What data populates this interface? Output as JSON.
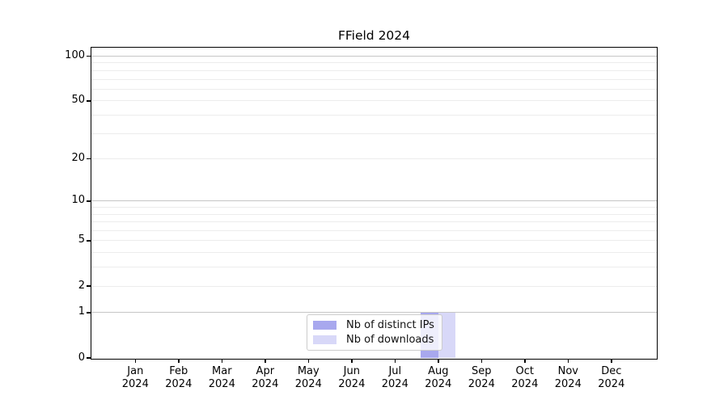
{
  "chart_data": {
    "type": "bar",
    "title": "FField 2024",
    "categories": [
      "Jan 2024",
      "Feb 2024",
      "Mar 2024",
      "Apr 2024",
      "May 2024",
      "Jun 2024",
      "Jul 2024",
      "Aug 2024",
      "Sep 2024",
      "Oct 2024",
      "Nov 2024",
      "Dec 2024"
    ],
    "series": [
      {
        "name": "Nb of distinct IPs",
        "color": "#a8a8ee",
        "values": [
          0,
          0,
          0,
          0,
          0,
          0,
          0,
          1,
          0,
          0,
          0,
          0
        ]
      },
      {
        "name": "Nb of downloads",
        "color": "#d8d8f8",
        "values": [
          0,
          0,
          0,
          0,
          0,
          0,
          0,
          1,
          0,
          0,
          0,
          0
        ]
      }
    ],
    "xlabel": "",
    "ylabel": "",
    "y_scale": "log1p",
    "y_ticks": [
      0,
      1,
      2,
      5,
      10,
      20,
      50,
      100
    ],
    "y_minor_gridlines": [
      2,
      3,
      4,
      5,
      6,
      7,
      8,
      9,
      20,
      30,
      40,
      50,
      60,
      70,
      80,
      90
    ],
    "y_major_gridlines": [
      1,
      10,
      100
    ],
    "ylim": [
      0,
      114
    ],
    "grid": true,
    "legend_position": "lower center",
    "colors": {
      "axis": "#000000",
      "major_grid": "#c6c6c6",
      "minor_grid": "#ececec",
      "legend_border": "#cccccc"
    }
  }
}
